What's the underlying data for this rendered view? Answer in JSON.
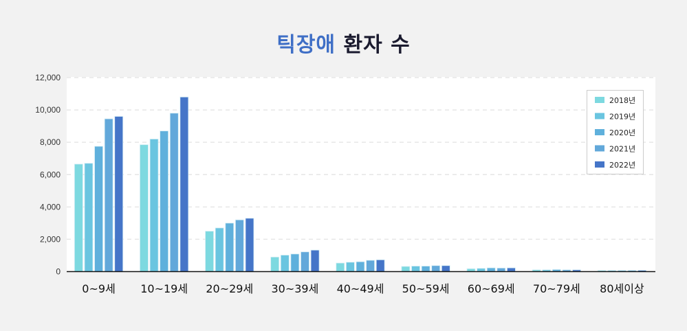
{
  "chart_data": {
    "type": "bar",
    "title": {
      "highlight": "틱장애",
      "rest": "환자 수"
    },
    "categories": [
      "0~9세",
      "10~19세",
      "20~29세",
      "30~39세",
      "40~49세",
      "50~59세",
      "60~69세",
      "70~79세",
      "80세이상"
    ],
    "series": [
      {
        "name": "2018년",
        "color": "#7dd9e0",
        "values": [
          6650,
          7850,
          2500,
          900,
          530,
          320,
          180,
          110,
          70
        ]
      },
      {
        "name": "2019년",
        "color": "#6ac5e0",
        "values": [
          6700,
          8200,
          2700,
          1020,
          580,
          340,
          200,
          110,
          70
        ]
      },
      {
        "name": "2020년",
        "color": "#5fb0dc",
        "values": [
          7750,
          8700,
          3000,
          1090,
          610,
          340,
          230,
          130,
          70
        ]
      },
      {
        "name": "2021년",
        "color": "#62a8da",
        "values": [
          9450,
          9800,
          3200,
          1220,
          700,
          370,
          220,
          110,
          75
        ]
      },
      {
        "name": "2022년",
        "color": "#4575c8",
        "values": [
          9600,
          10800,
          3300,
          1330,
          730,
          370,
          230,
          110,
          80
        ]
      }
    ],
    "ylim": [
      0,
      12000
    ],
    "yticks": [
      "0",
      "2,000",
      "4,000",
      "6,000",
      "8,000",
      "10,000",
      "12,000"
    ],
    "grid": true,
    "legend_position": "top-right"
  }
}
